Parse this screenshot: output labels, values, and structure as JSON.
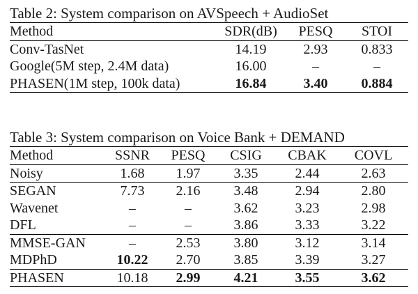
{
  "table2": {
    "caption": "Table 2: System comparison on AVSpeech + AudioSet",
    "headers": [
      "Method",
      "SDR(dB)",
      "PESQ",
      "STOI"
    ],
    "rows": [
      [
        "Conv-TasNet",
        "14.19",
        "2.93",
        "0.833"
      ],
      [
        "Google(5M step, 2.4M data)",
        "16.00",
        "–",
        "–"
      ],
      [
        "PHASEN(1M step, 100k data)",
        "16.84",
        "3.40",
        "0.884"
      ]
    ],
    "bold": [
      [
        2,
        1
      ],
      [
        2,
        2
      ],
      [
        2,
        3
      ]
    ]
  },
  "table3": {
    "caption": "Table 3: System comparison on Voice Bank + DEMAND",
    "headers": [
      "Method",
      "SSNR",
      "PESQ",
      "CSIG",
      "CBAK",
      "COVL"
    ],
    "rows": [
      [
        "Noisy",
        "1.68",
        "1.97",
        "3.35",
        "2.44",
        "2.63"
      ],
      [
        "SEGAN",
        "7.73",
        "2.16",
        "3.48",
        "2.94",
        "2.80"
      ],
      [
        "Wavenet",
        "–",
        "–",
        "3.62",
        "3.23",
        "2.98"
      ],
      [
        "DFL",
        "–",
        "–",
        "3.86",
        "3.33",
        "3.22"
      ],
      [
        "MMSE-GAN",
        "–",
        "2.53",
        "3.80",
        "3.12",
        "3.14"
      ],
      [
        "MDPhD",
        "10.22",
        "2.70",
        "3.85",
        "3.39",
        "3.27"
      ],
      [
        "PHASEN",
        "10.18",
        "2.99",
        "4.21",
        "3.55",
        "3.62"
      ]
    ],
    "bold": [
      [
        5,
        1
      ],
      [
        6,
        2
      ],
      [
        6,
        3
      ],
      [
        6,
        4
      ],
      [
        6,
        5
      ]
    ],
    "separator_before_rows": [
      1,
      4,
      6
    ]
  }
}
